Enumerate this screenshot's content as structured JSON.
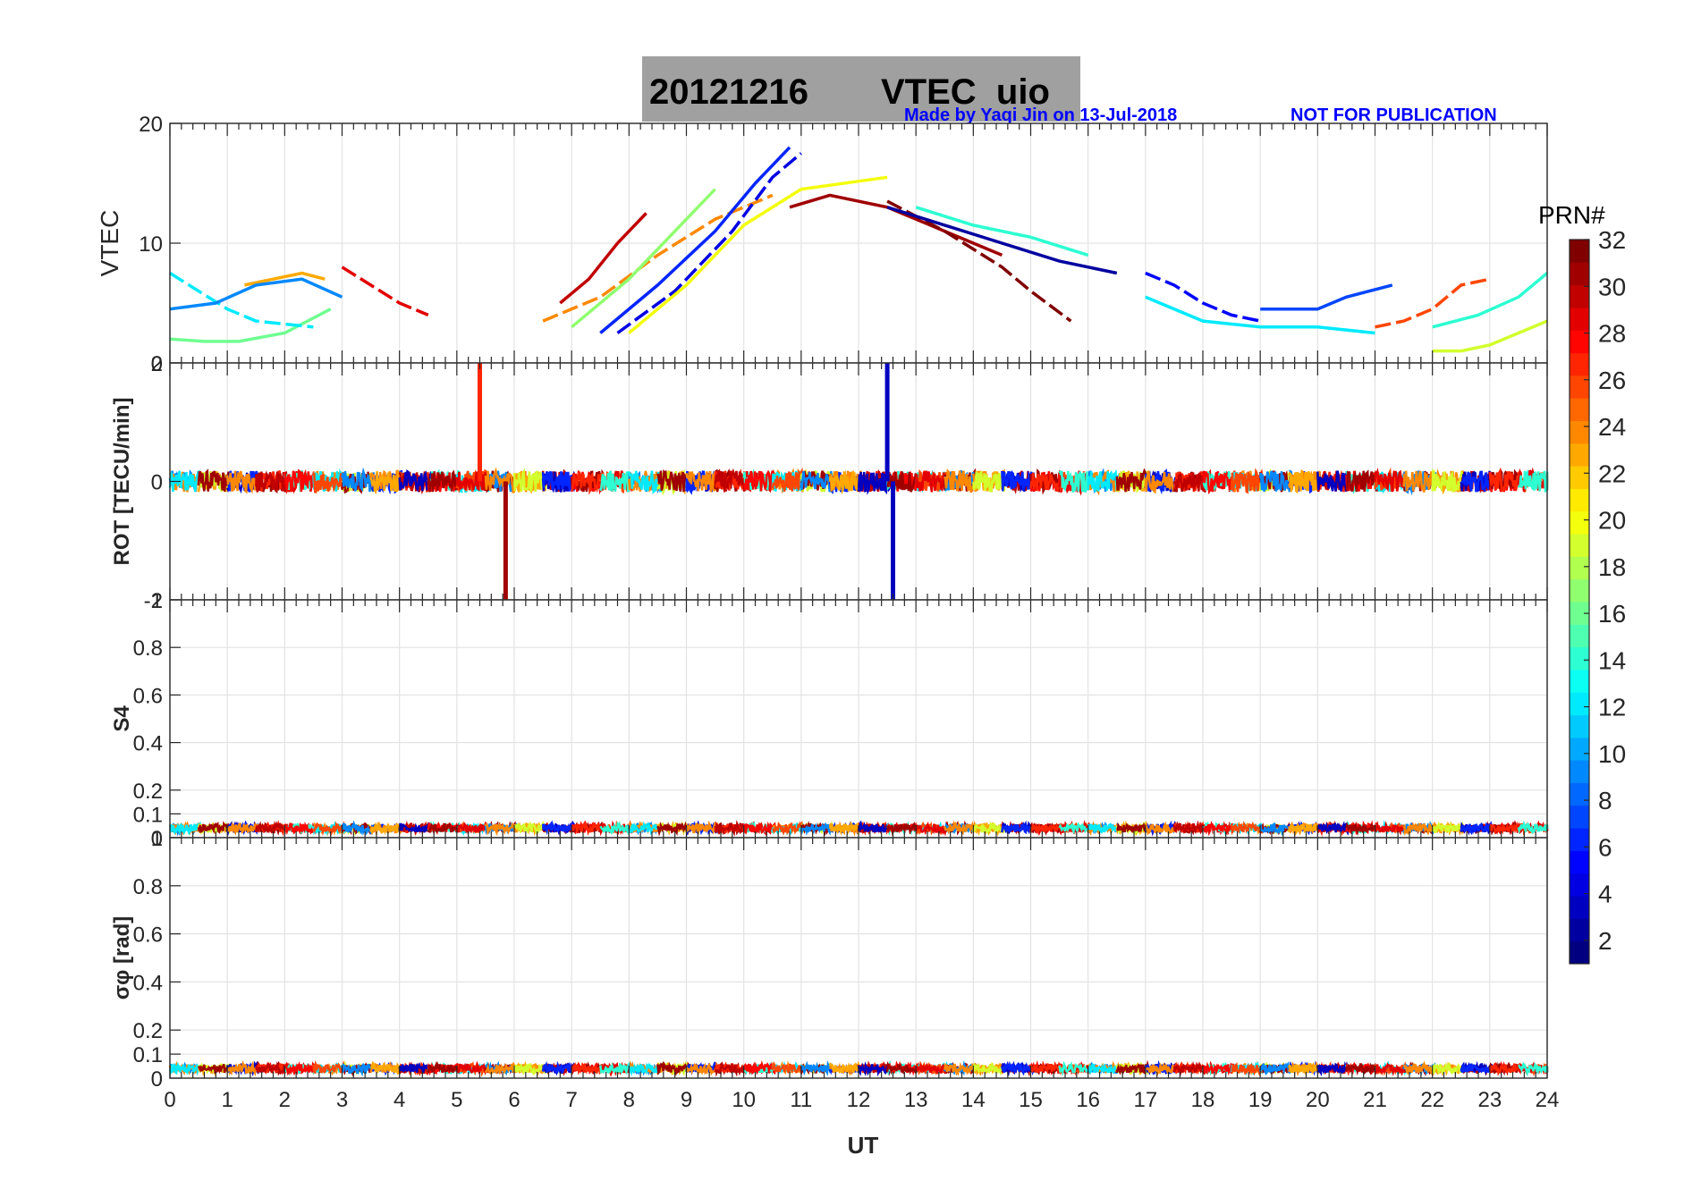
{
  "header": {
    "title_date": "20121216",
    "title_text": "VTEC  uio",
    "credit": "Made by Yaqi Jin on 13-Jul-2018",
    "notice": "NOT FOR PUBLICATION"
  },
  "colors": {
    "title_box": "#a0a0a0",
    "credit": "#0000ff",
    "grid": "#e6e6e6",
    "axis": "#262626"
  },
  "chart_data": [
    {
      "type": "line",
      "name": "vtec",
      "ylabel": "VTEC",
      "ylim": [
        0,
        20
      ],
      "yticks": [
        0,
        10,
        20
      ],
      "xlim": [
        0,
        24
      ],
      "series": [
        {
          "prn": 29,
          "x": [
            3.0,
            3.5,
            4.0,
            4.5
          ],
          "values": [
            8.0,
            6.5,
            5.0,
            4.0
          ]
        },
        {
          "prn": 23,
          "x": [
            1.3,
            1.8,
            2.3,
            2.7
          ],
          "values": [
            6.5,
            7.0,
            7.5,
            7.0
          ]
        },
        {
          "prn": 16,
          "x": [
            0.0,
            0.6,
            1.2,
            2.0,
            2.8
          ],
          "values": [
            2.0,
            1.8,
            1.8,
            2.5,
            4.5
          ]
        },
        {
          "prn": 12,
          "x": [
            0.0,
            0.5,
            1.0,
            1.5,
            2.5
          ],
          "values": [
            7.5,
            6.0,
            4.5,
            3.5,
            3.0
          ]
        },
        {
          "prn": 9,
          "x": [
            0.0,
            0.8,
            1.5,
            2.3,
            3.0
          ],
          "values": [
            4.5,
            5.0,
            6.5,
            7.0,
            5.5
          ]
        },
        {
          "prn": 30,
          "x": [
            6.8,
            7.3,
            7.8,
            8.3
          ],
          "values": [
            5.0,
            7.0,
            10.0,
            12.5
          ]
        },
        {
          "prn": 24,
          "x": [
            6.5,
            7.5,
            8.5,
            9.5,
            10.5
          ],
          "values": [
            3.5,
            5.5,
            9.0,
            12.0,
            14.0
          ]
        },
        {
          "prn": 17,
          "x": [
            7.0,
            8.0,
            9.0,
            9.5
          ],
          "values": [
            3.0,
            7.0,
            12.0,
            14.5
          ]
        },
        {
          "prn": 6,
          "x": [
            7.5,
            8.5,
            9.5,
            10.2,
            10.8
          ],
          "values": [
            2.5,
            6.5,
            11.0,
            15.0,
            18.0
          ]
        },
        {
          "prn": 4,
          "x": [
            7.8,
            8.8,
            9.8,
            10.5,
            11.0
          ],
          "values": [
            2.5,
            6.0,
            11.0,
            15.5,
            17.5
          ]
        },
        {
          "prn": 20,
          "x": [
            8.0,
            9.0,
            10.0,
            11.0,
            12.5
          ],
          "values": [
            2.5,
            6.5,
            11.5,
            14.5,
            15.5
          ]
        },
        {
          "prn": 31,
          "x": [
            10.8,
            11.5,
            12.5,
            13.5,
            14.5
          ],
          "values": [
            13.0,
            14.0,
            13.0,
            11.0,
            9.0
          ]
        },
        {
          "prn": 32,
          "x": [
            12.5,
            13.5,
            14.5,
            15.0,
            15.7
          ],
          "values": [
            13.5,
            11.0,
            8.0,
            6.0,
            3.5
          ]
        },
        {
          "prn": 2,
          "x": [
            12.5,
            13.5,
            14.5,
            15.5,
            16.5
          ],
          "values": [
            13.0,
            11.5,
            10.0,
            8.5,
            7.5
          ]
        },
        {
          "prn": 14,
          "x": [
            13.0,
            14.0,
            15.0,
            16.0
          ],
          "values": [
            13.0,
            11.5,
            10.5,
            9.0
          ]
        },
        {
          "prn": 5,
          "x": [
            17.0,
            17.5,
            18.0,
            18.5,
            19.0
          ],
          "values": [
            7.5,
            6.5,
            5.0,
            4.0,
            3.5
          ]
        },
        {
          "prn": 12,
          "x": [
            17.0,
            18.0,
            19.0,
            20.0,
            21.0
          ],
          "values": [
            5.5,
            3.5,
            3.0,
            3.0,
            2.5
          ]
        },
        {
          "prn": 7,
          "x": [
            19.0,
            20.0,
            20.5,
            21.3
          ],
          "values": [
            4.5,
            4.5,
            5.5,
            6.5
          ]
        },
        {
          "prn": 26,
          "x": [
            21.0,
            21.5,
            22.0,
            22.5,
            23.0
          ],
          "values": [
            3.0,
            3.5,
            4.5,
            6.5,
            7.0
          ]
        },
        {
          "prn": 14,
          "x": [
            22.0,
            22.8,
            23.5,
            24.0
          ],
          "values": [
            3.0,
            4.0,
            5.5,
            7.5
          ]
        },
        {
          "prn": 19,
          "x": [
            22.0,
            22.5,
            23.0,
            23.5,
            24.0
          ],
          "values": [
            1.0,
            1.0,
            1.5,
            2.5,
            3.5
          ]
        }
      ]
    },
    {
      "type": "line",
      "name": "rot",
      "ylabel": "ROT [TECU/min]",
      "ylim": [
        -2,
        2
      ],
      "yticks": [
        -2,
        0,
        2
      ],
      "xlim": [
        0,
        24
      ],
      "spikes": [
        {
          "prn": 27,
          "x": 5.4,
          "values": [
            0,
            2
          ]
        },
        {
          "prn": 31,
          "x": 5.85,
          "values": [
            0,
            -2
          ]
        },
        {
          "prn": 3,
          "x": 12.5,
          "values": [
            0,
            2
          ]
        },
        {
          "prn": 3,
          "x": 12.6,
          "values": [
            0,
            -2
          ]
        }
      ]
    },
    {
      "type": "line",
      "name": "s4",
      "ylabel": "S4",
      "ylim": [
        0,
        1
      ],
      "yticks": [
        0,
        0.1,
        0.2,
        0.4,
        0.6,
        0.8,
        1
      ],
      "xlim": [
        0,
        24
      ]
    },
    {
      "type": "line",
      "name": "sigma_phi",
      "ylabel": "σφ [rad]",
      "ylim": [
        0,
        1
      ],
      "yticks": [
        0,
        0.1,
        0.2,
        0.4,
        0.6,
        0.8,
        1
      ],
      "xlim": [
        0,
        24
      ],
      "xlabel": "UT",
      "xticks": [
        0,
        1,
        2,
        3,
        4,
        5,
        6,
        7,
        8,
        9,
        10,
        11,
        12,
        13,
        14,
        15,
        16,
        17,
        18,
        19,
        20,
        21,
        22,
        23,
        24
      ]
    }
  ],
  "colorbar": {
    "title": "PRN#",
    "range": [
      1,
      32
    ],
    "ticks": [
      2,
      4,
      6,
      8,
      10,
      12,
      14,
      16,
      18,
      20,
      22,
      24,
      26,
      28,
      30,
      32
    ]
  }
}
